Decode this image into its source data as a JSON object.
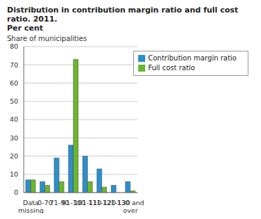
{
  "chart_data": {
    "type": "bar",
    "title": "Distribution in contribution margin ratio and full cost ratio. 2011.",
    "subtitle": "Per cent",
    "y_label": "Share of municipalities",
    "categories": [
      "Data missing",
      "0-70",
      "71-90",
      "91-100",
      "101-110",
      "111-120",
      "121-130",
      "130 and over"
    ],
    "series": [
      {
        "name": "Contribution margin ratio",
        "color": "#2a8fcb",
        "values": [
          7,
          6,
          19,
          26,
          20,
          13,
          4,
          6
        ]
      },
      {
        "name": "Full cost ratio",
        "color": "#6cb62e",
        "values": [
          7,
          4,
          6,
          73,
          6,
          3,
          0,
          1
        ]
      }
    ],
    "ylim": [
      0,
      80
    ],
    "yticks": [
      0,
      10,
      20,
      30,
      40,
      50,
      60,
      70,
      80
    ],
    "grid": true,
    "legend": "upper right"
  }
}
